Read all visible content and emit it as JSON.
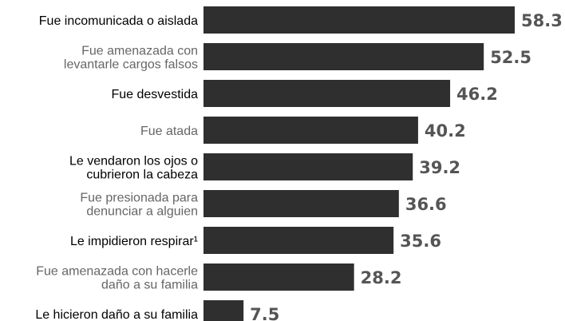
{
  "chart_data": {
    "type": "bar",
    "orientation": "horizontal",
    "title": "",
    "xlabel": "",
    "ylabel": "",
    "xlim": [
      0,
      58.3
    ],
    "grid": false,
    "legend": "none",
    "categories": [
      "Fue incomunicada o aislada",
      "Fue amenazada con levantarle cargos falsos",
      "Fue desvestida",
      "Fue atada",
      "Le vendaron los ojos o cubrieron la cabeza",
      "Fue presionada para denunciar a alguien",
      "Le impidieron respirar¹",
      "Fue amenazada con hacerle daño a su familia",
      "Le hicieron daño a su familia"
    ],
    "category_lines": [
      [
        "Fue incomunicada o aislada"
      ],
      [
        "Fue amenazada con",
        "levantarle cargos falsos"
      ],
      [
        "Fue desvestida"
      ],
      [
        "Fue atada"
      ],
      [
        "Le vendaron los ojos o",
        "cubrieron la cabeza"
      ],
      [
        "Fue presionada para",
        "denunciar a alguien"
      ],
      [
        "Le impidieron respirar¹"
      ],
      [
        "Fue amenazada con hacerle",
        "daño a su familia"
      ],
      [
        "Le hicieron daño a su familia"
      ]
    ],
    "values": [
      58.3,
      52.5,
      46.2,
      40.2,
      39.2,
      36.6,
      35.6,
      28.2,
      7.5
    ],
    "value_labels": [
      "58.3",
      "52.5",
      "46.2",
      "40.2",
      "39.2",
      "36.6",
      "35.6",
      "28.2",
      "7.5"
    ],
    "colors": {
      "bar": "#2f2f2f",
      "value_text": "#555555",
      "label_dark": "#000000",
      "label_light": "#666666"
    },
    "label_tones": [
      "dark",
      "light",
      "dark",
      "light",
      "dark",
      "light",
      "dark",
      "light",
      "dark"
    ]
  }
}
